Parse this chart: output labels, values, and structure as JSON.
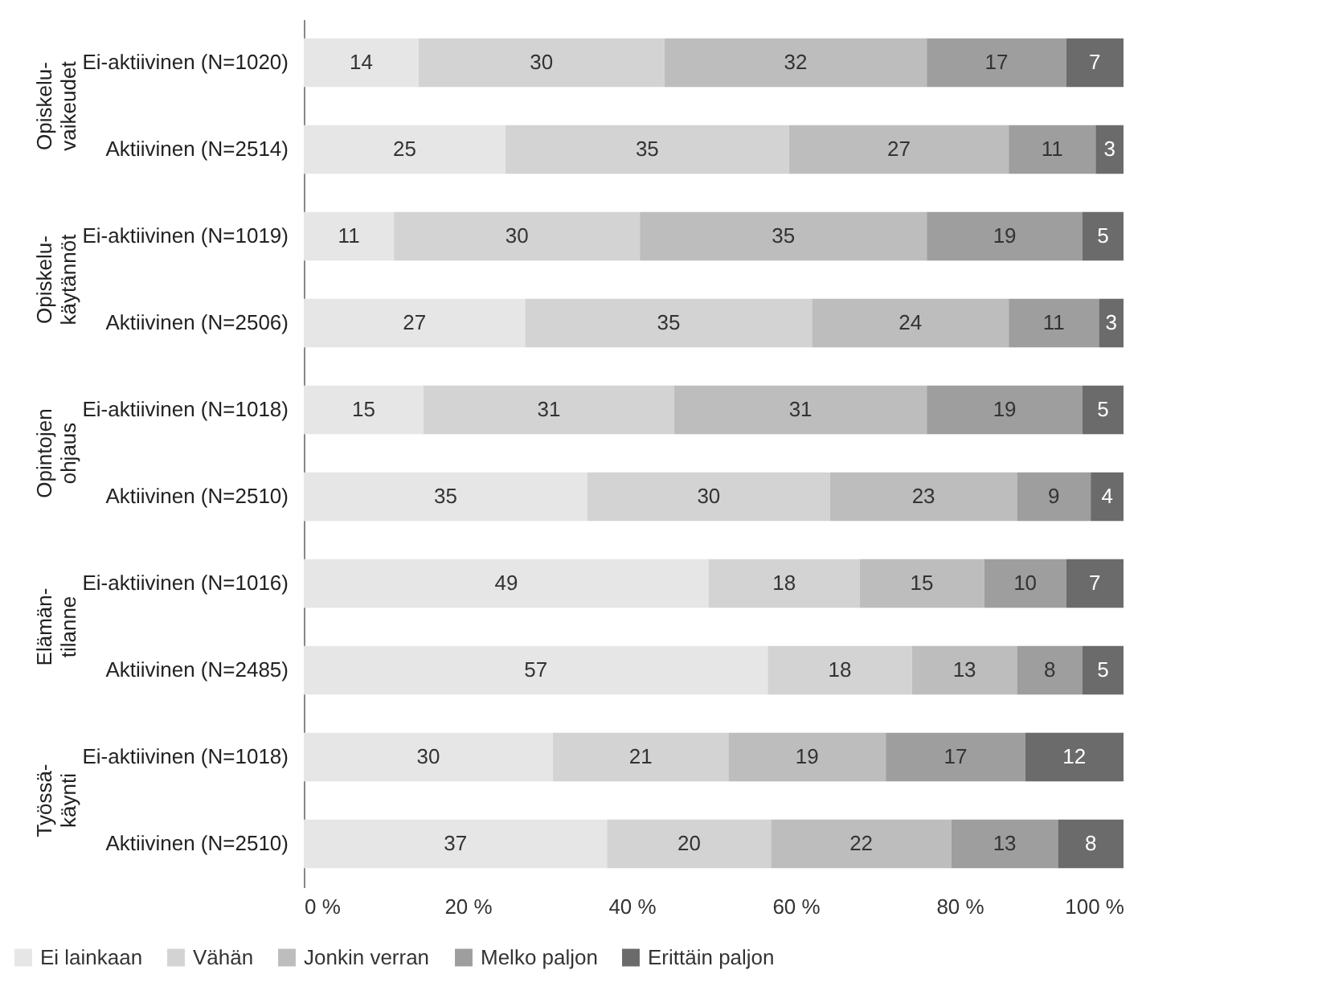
{
  "chart_data": {
    "type": "bar",
    "orientation": "horizontal",
    "stacked": true,
    "categories": [
      "Ei-aktiivinen (N=1020)",
      "Aktiivinen (N=2514)",
      "Ei-aktiivinen (N=1019)",
      "Aktiivinen (N=2506)",
      "Ei-aktiivinen (N=1018)",
      "Aktiivinen (N=2510)",
      "Ei-aktiivinen (N=1016)",
      "Aktiivinen (N=2485)",
      "Ei-aktiivinen (N=1018)",
      "Aktiivinen (N=2510)"
    ],
    "annotations": [
      "Opiskelu-\nvaikeudet",
      "Opiskelu-\nkäytännöt",
      "Opintojen\nohjaus",
      "Elämän-\ntilanne",
      "Työssä-\nkäynti"
    ],
    "series": [
      {
        "name": "Ei lainkaan",
        "color": "#e6e6e6",
        "values": [
          14,
          24.6,
          11,
          27,
          14.6,
          34.6,
          49.4,
          56.6,
          30.4,
          37
        ],
        "value_labels": [
          "14",
          "25",
          "11",
          "27",
          "15",
          "35",
          "49",
          "57",
          "30",
          "37"
        ]
      },
      {
        "name": "Vähän",
        "color": "#d3d3d3",
        "values": [
          30,
          34.6,
          30,
          35,
          30.6,
          29.6,
          18.4,
          17.6,
          21.4,
          20
        ],
        "value_labels": [
          "30",
          "35",
          "30",
          "35",
          "31",
          "30",
          "18",
          "18",
          "21",
          "20"
        ]
      },
      {
        "name": "Jonkin verran",
        "color": "#bdbdbd",
        "values": [
          32,
          26.8,
          35,
          24,
          30.8,
          22.8,
          15.2,
          12.8,
          19.2,
          22
        ],
        "value_labels": [
          "32",
          "27",
          "35",
          "24",
          "31",
          "23",
          "15",
          "13",
          "19",
          "22"
        ]
      },
      {
        "name": "Melko paljon",
        "color": "#9e9e9e",
        "values": [
          17,
          10.6,
          19,
          11,
          19,
          9,
          10,
          8,
          17,
          13
        ],
        "value_labels": [
          "17",
          "11",
          "19",
          "11",
          "19",
          "9",
          "10",
          "8",
          "17",
          "13"
        ]
      },
      {
        "name": "Erittäin paljon",
        "color": "#6b6b6b",
        "values": [
          7,
          3.4,
          5,
          3,
          5,
          4,
          7,
          5,
          12,
          8
        ],
        "value_labels": [
          "7",
          "3",
          "5",
          "3",
          "5",
          "4",
          "7",
          "5",
          "12",
          "8"
        ]
      }
    ],
    "xlim": [
      0,
      100
    ],
    "xticks": [
      {
        "value": 0,
        "label": "0 %"
      },
      {
        "value": 20,
        "label": "20 %"
      },
      {
        "value": 40,
        "label": "40 %"
      },
      {
        "value": 60,
        "label": "60 %"
      },
      {
        "value": 80,
        "label": "80 %"
      },
      {
        "value": 100,
        "label": "100 %"
      }
    ],
    "legend": "bottom",
    "grid": false
  }
}
